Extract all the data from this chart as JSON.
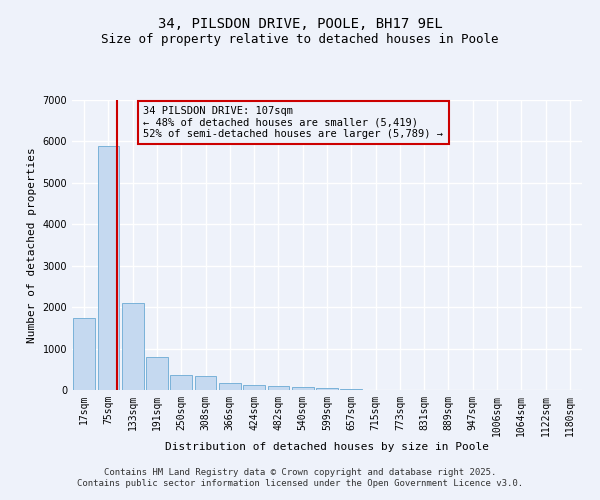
{
  "title": "34, PILSDON DRIVE, POOLE, BH17 9EL",
  "subtitle": "Size of property relative to detached houses in Poole",
  "xlabel": "Distribution of detached houses by size in Poole",
  "ylabel": "Number of detached properties",
  "categories": [
    "17sqm",
    "75sqm",
    "133sqm",
    "191sqm",
    "250sqm",
    "308sqm",
    "366sqm",
    "424sqm",
    "482sqm",
    "540sqm",
    "599sqm",
    "657sqm",
    "715sqm",
    "773sqm",
    "831sqm",
    "889sqm",
    "947sqm",
    "1006sqm",
    "1064sqm",
    "1122sqm",
    "1180sqm"
  ],
  "values": [
    1750,
    5900,
    2100,
    800,
    370,
    330,
    160,
    130,
    95,
    70,
    40,
    15,
    10,
    5,
    3,
    2,
    2,
    1,
    1,
    1,
    1
  ],
  "bar_color": "#c5d9f0",
  "bar_edge_color": "#6aaad4",
  "vline_color": "#cc0000",
  "vline_x": 1.35,
  "annotation_title": "34 PILSDON DRIVE: 107sqm",
  "annotation_line1": "← 48% of detached houses are smaller (5,419)",
  "annotation_line2": "52% of semi-detached houses are larger (5,789) →",
  "annotation_box_color": "#cc0000",
  "ylim": [
    0,
    7000
  ],
  "yticks": [
    0,
    1000,
    2000,
    3000,
    4000,
    5000,
    6000,
    7000
  ],
  "footer_line1": "Contains HM Land Registry data © Crown copyright and database right 2025.",
  "footer_line2": "Contains public sector information licensed under the Open Government Licence v3.0.",
  "bg_color": "#eef2fa",
  "grid_color": "#ffffff",
  "title_fontsize": 10,
  "subtitle_fontsize": 9,
  "axis_label_fontsize": 8,
  "tick_fontsize": 7,
  "annotation_fontsize": 7.5,
  "footer_fontsize": 6.5
}
